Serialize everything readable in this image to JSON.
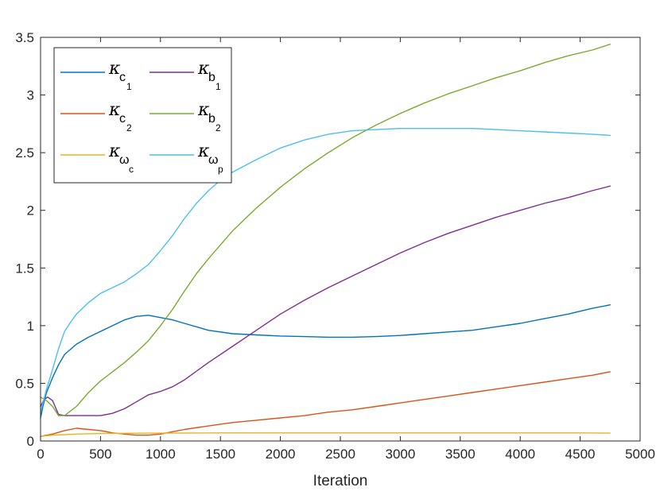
{
  "chart_data": {
    "type": "line",
    "xlabel": "Iteration",
    "ylabel": "",
    "title": "",
    "xlim": [
      0,
      5000
    ],
    "ylim": [
      0,
      3.5
    ],
    "xticks": [
      "0",
      "500",
      "1000",
      "1500",
      "2000",
      "2500",
      "3000",
      "3500",
      "4000",
      "4500",
      "5000"
    ],
    "yticks": [
      "0",
      "0.5",
      "1",
      "1.5",
      "2",
      "2.5",
      "3",
      "3.5"
    ],
    "grid": false,
    "legend_position": "top-left",
    "legend_columns": 2,
    "series": [
      {
        "name": "κc1",
        "legend": {
          "main": "κ",
          "sub": "c",
          "subsub": "1"
        },
        "color": "#0072BD",
        "x": [
          0,
          20,
          50,
          100,
          150,
          200,
          300,
          400,
          500,
          600,
          700,
          800,
          900,
          1000,
          1100,
          1200,
          1400,
          1600,
          1800,
          2000,
          2200,
          2400,
          2600,
          2800,
          3000,
          3200,
          3400,
          3600,
          3800,
          4000,
          4200,
          4400,
          4600,
          4750
        ],
        "y": [
          0.2,
          0.3,
          0.42,
          0.55,
          0.66,
          0.75,
          0.84,
          0.9,
          0.95,
          1.0,
          1.05,
          1.08,
          1.09,
          1.07,
          1.05,
          1.02,
          0.96,
          0.93,
          0.92,
          0.91,
          0.905,
          0.9,
          0.9,
          0.905,
          0.915,
          0.93,
          0.945,
          0.96,
          0.99,
          1.02,
          1.06,
          1.1,
          1.15,
          1.18
        ]
      },
      {
        "name": "κc2",
        "legend": {
          "main": "κ",
          "sub": "c",
          "subsub": "2"
        },
        "color": "#D95319",
        "x": [
          0,
          100,
          200,
          300,
          400,
          500,
          600,
          700,
          800,
          900,
          1000,
          1100,
          1200,
          1400,
          1600,
          1800,
          2000,
          2200,
          2400,
          2600,
          2800,
          3000,
          3200,
          3400,
          3600,
          3800,
          4000,
          4200,
          4400,
          4600,
          4750
        ],
        "y": [
          0.04,
          0.06,
          0.09,
          0.11,
          0.1,
          0.09,
          0.07,
          0.06,
          0.05,
          0.05,
          0.06,
          0.08,
          0.1,
          0.13,
          0.16,
          0.18,
          0.2,
          0.22,
          0.25,
          0.27,
          0.3,
          0.33,
          0.36,
          0.39,
          0.42,
          0.45,
          0.48,
          0.51,
          0.54,
          0.57,
          0.6
        ]
      },
      {
        "name": "κωc",
        "legend": {
          "main": "κ",
          "sub": "ω",
          "subsub": "c"
        },
        "color": "#EDB120",
        "x": [
          0,
          100,
          200,
          300,
          500,
          1000,
          1500,
          2000,
          2500,
          3000,
          3500,
          4000,
          4500,
          4750
        ],
        "y": [
          0.04,
          0.05,
          0.055,
          0.06,
          0.065,
          0.068,
          0.07,
          0.07,
          0.07,
          0.07,
          0.07,
          0.07,
          0.07,
          0.068
        ]
      },
      {
        "name": "κb1",
        "legend": {
          "main": "κ",
          "sub": "b",
          "subsub": "1"
        },
        "color": "#7E2F8E",
        "x": [
          0,
          30,
          60,
          100,
          150,
          200,
          300,
          400,
          500,
          600,
          700,
          800,
          900,
          1000,
          1100,
          1200,
          1400,
          1600,
          1800,
          2000,
          2200,
          2400,
          2600,
          2800,
          3000,
          3200,
          3400,
          3600,
          3800,
          4000,
          4200,
          4400,
          4600,
          4750
        ],
        "y": [
          0.3,
          0.36,
          0.38,
          0.35,
          0.23,
          0.22,
          0.22,
          0.22,
          0.22,
          0.24,
          0.28,
          0.34,
          0.4,
          0.43,
          0.47,
          0.53,
          0.68,
          0.82,
          0.96,
          1.1,
          1.22,
          1.33,
          1.43,
          1.53,
          1.63,
          1.72,
          1.8,
          1.87,
          1.94,
          2.0,
          2.06,
          2.11,
          2.17,
          2.21
        ]
      },
      {
        "name": "κb2",
        "legend": {
          "main": "κ",
          "sub": "b",
          "subsub": "2"
        },
        "color": "#77AC30",
        "x": [
          0,
          50,
          100,
          150,
          200,
          300,
          400,
          500,
          600,
          700,
          800,
          900,
          1000,
          1100,
          1200,
          1300,
          1400,
          1600,
          1800,
          2000,
          2200,
          2400,
          2600,
          2800,
          3000,
          3200,
          3400,
          3600,
          3800,
          4000,
          4200,
          4400,
          4600,
          4750
        ],
        "y": [
          0.38,
          0.35,
          0.3,
          0.22,
          0.22,
          0.3,
          0.42,
          0.52,
          0.6,
          0.68,
          0.77,
          0.87,
          1.0,
          1.14,
          1.3,
          1.45,
          1.58,
          1.82,
          2.02,
          2.2,
          2.36,
          2.5,
          2.63,
          2.74,
          2.84,
          2.93,
          3.01,
          3.08,
          3.15,
          3.21,
          3.28,
          3.34,
          3.39,
          3.44
        ]
      },
      {
        "name": "κωp",
        "legend": {
          "main": "κ",
          "sub": "ω",
          "subsub": "p"
        },
        "color": "#4DBEEE",
        "x": [
          0,
          25,
          50,
          100,
          150,
          200,
          250,
          300,
          400,
          500,
          600,
          700,
          800,
          900,
          1000,
          1100,
          1200,
          1300,
          1400,
          1500,
          1600,
          1800,
          2000,
          2200,
          2400,
          2600,
          2800,
          3000,
          3200,
          3400,
          3600,
          3800,
          4000,
          4200,
          4400,
          4600,
          4750
        ],
        "y": [
          0.25,
          0.35,
          0.45,
          0.62,
          0.8,
          0.95,
          1.03,
          1.1,
          1.2,
          1.28,
          1.33,
          1.38,
          1.45,
          1.53,
          1.65,
          1.78,
          1.93,
          2.06,
          2.17,
          2.26,
          2.33,
          2.44,
          2.54,
          2.61,
          2.66,
          2.69,
          2.7,
          2.71,
          2.71,
          2.71,
          2.71,
          2.7,
          2.69,
          2.68,
          2.67,
          2.66,
          2.65
        ]
      }
    ]
  }
}
